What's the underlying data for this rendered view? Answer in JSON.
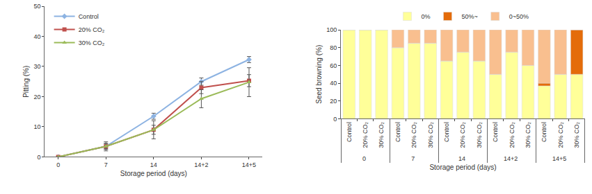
{
  "chart_data": [
    {
      "type": "line",
      "x_title": "Storage period (days)",
      "y_title": "Pitting (%)",
      "categories": [
        "0",
        "7",
        "14",
        "14+2",
        "14+5"
      ],
      "series": [
        {
          "name": "Control",
          "color": "#8db3e2",
          "marker": "diamond",
          "values": [
            0,
            3.5,
            13.5,
            25,
            32.3
          ],
          "errors": [
            0,
            0.8,
            1,
            1.2,
            1
          ]
        },
        {
          "name": "20% CO₂",
          "color": "#c0504d",
          "marker": "square",
          "values": [
            0,
            3.5,
            9,
            23,
            25.3
          ],
          "errors": [
            0,
            1.5,
            1.5,
            2,
            2
          ]
        },
        {
          "name": "30% CO₂",
          "color": "#9bbb59",
          "marker": "triangle-up",
          "values": [
            0,
            3.5,
            9,
            19.3,
            24.8
          ],
          "errors": [
            0,
            1,
            3,
            3,
            4.8
          ]
        }
      ],
      "ylim": [
        0,
        50
      ],
      "yticks": [
        0,
        10,
        20,
        30,
        40,
        50
      ],
      "grid": false,
      "legend": "top left"
    },
    {
      "type": "bar",
      "stacked": true,
      "x_title": "Storage period (days)",
      "y_title": "Seed browning (%)",
      "categories": [
        [
          "0",
          "Control"
        ],
        [
          "0",
          "20% CO₂"
        ],
        [
          "0",
          "30% CO₂"
        ],
        [
          "7",
          "Control"
        ],
        [
          "7",
          "20% CO₂"
        ],
        [
          "7",
          "30% CO₂"
        ],
        [
          "14",
          "Control"
        ],
        [
          "14",
          "20% CO₂"
        ],
        [
          "14",
          "30% CO₂"
        ],
        [
          "14+2",
          "Control"
        ],
        [
          "14+2",
          "20% CO₂"
        ],
        [
          "14+2",
          "30% CO₂"
        ],
        [
          "14+5",
          "Control"
        ],
        [
          "14+5",
          "20% CO₂"
        ],
        [
          "14+5",
          "30% CO₂"
        ]
      ],
      "series": [
        {
          "name": "0%",
          "color": "#ffff99",
          "values": [
            100,
            100,
            100,
            80,
            85,
            85,
            65,
            75,
            65,
            50,
            75,
            60,
            37,
            50,
            50
          ]
        },
        {
          "name": "50%~",
          "color": "#e46c0a",
          "values": [
            0,
            0,
            0,
            0,
            0,
            0,
            0,
            0,
            0,
            0,
            0,
            0,
            3,
            0,
            50
          ]
        },
        {
          "name": "0~50%",
          "color": "#f9bf8f",
          "values": [
            0,
            0,
            0,
            20,
            15,
            15,
            35,
            25,
            35,
            50,
            25,
            40,
            60,
            50,
            0
          ]
        }
      ],
      "ylim": [
        0,
        100
      ],
      "yticks": [
        0,
        20,
        40,
        60,
        80,
        100
      ],
      "grid": false,
      "legend": "top"
    }
  ]
}
